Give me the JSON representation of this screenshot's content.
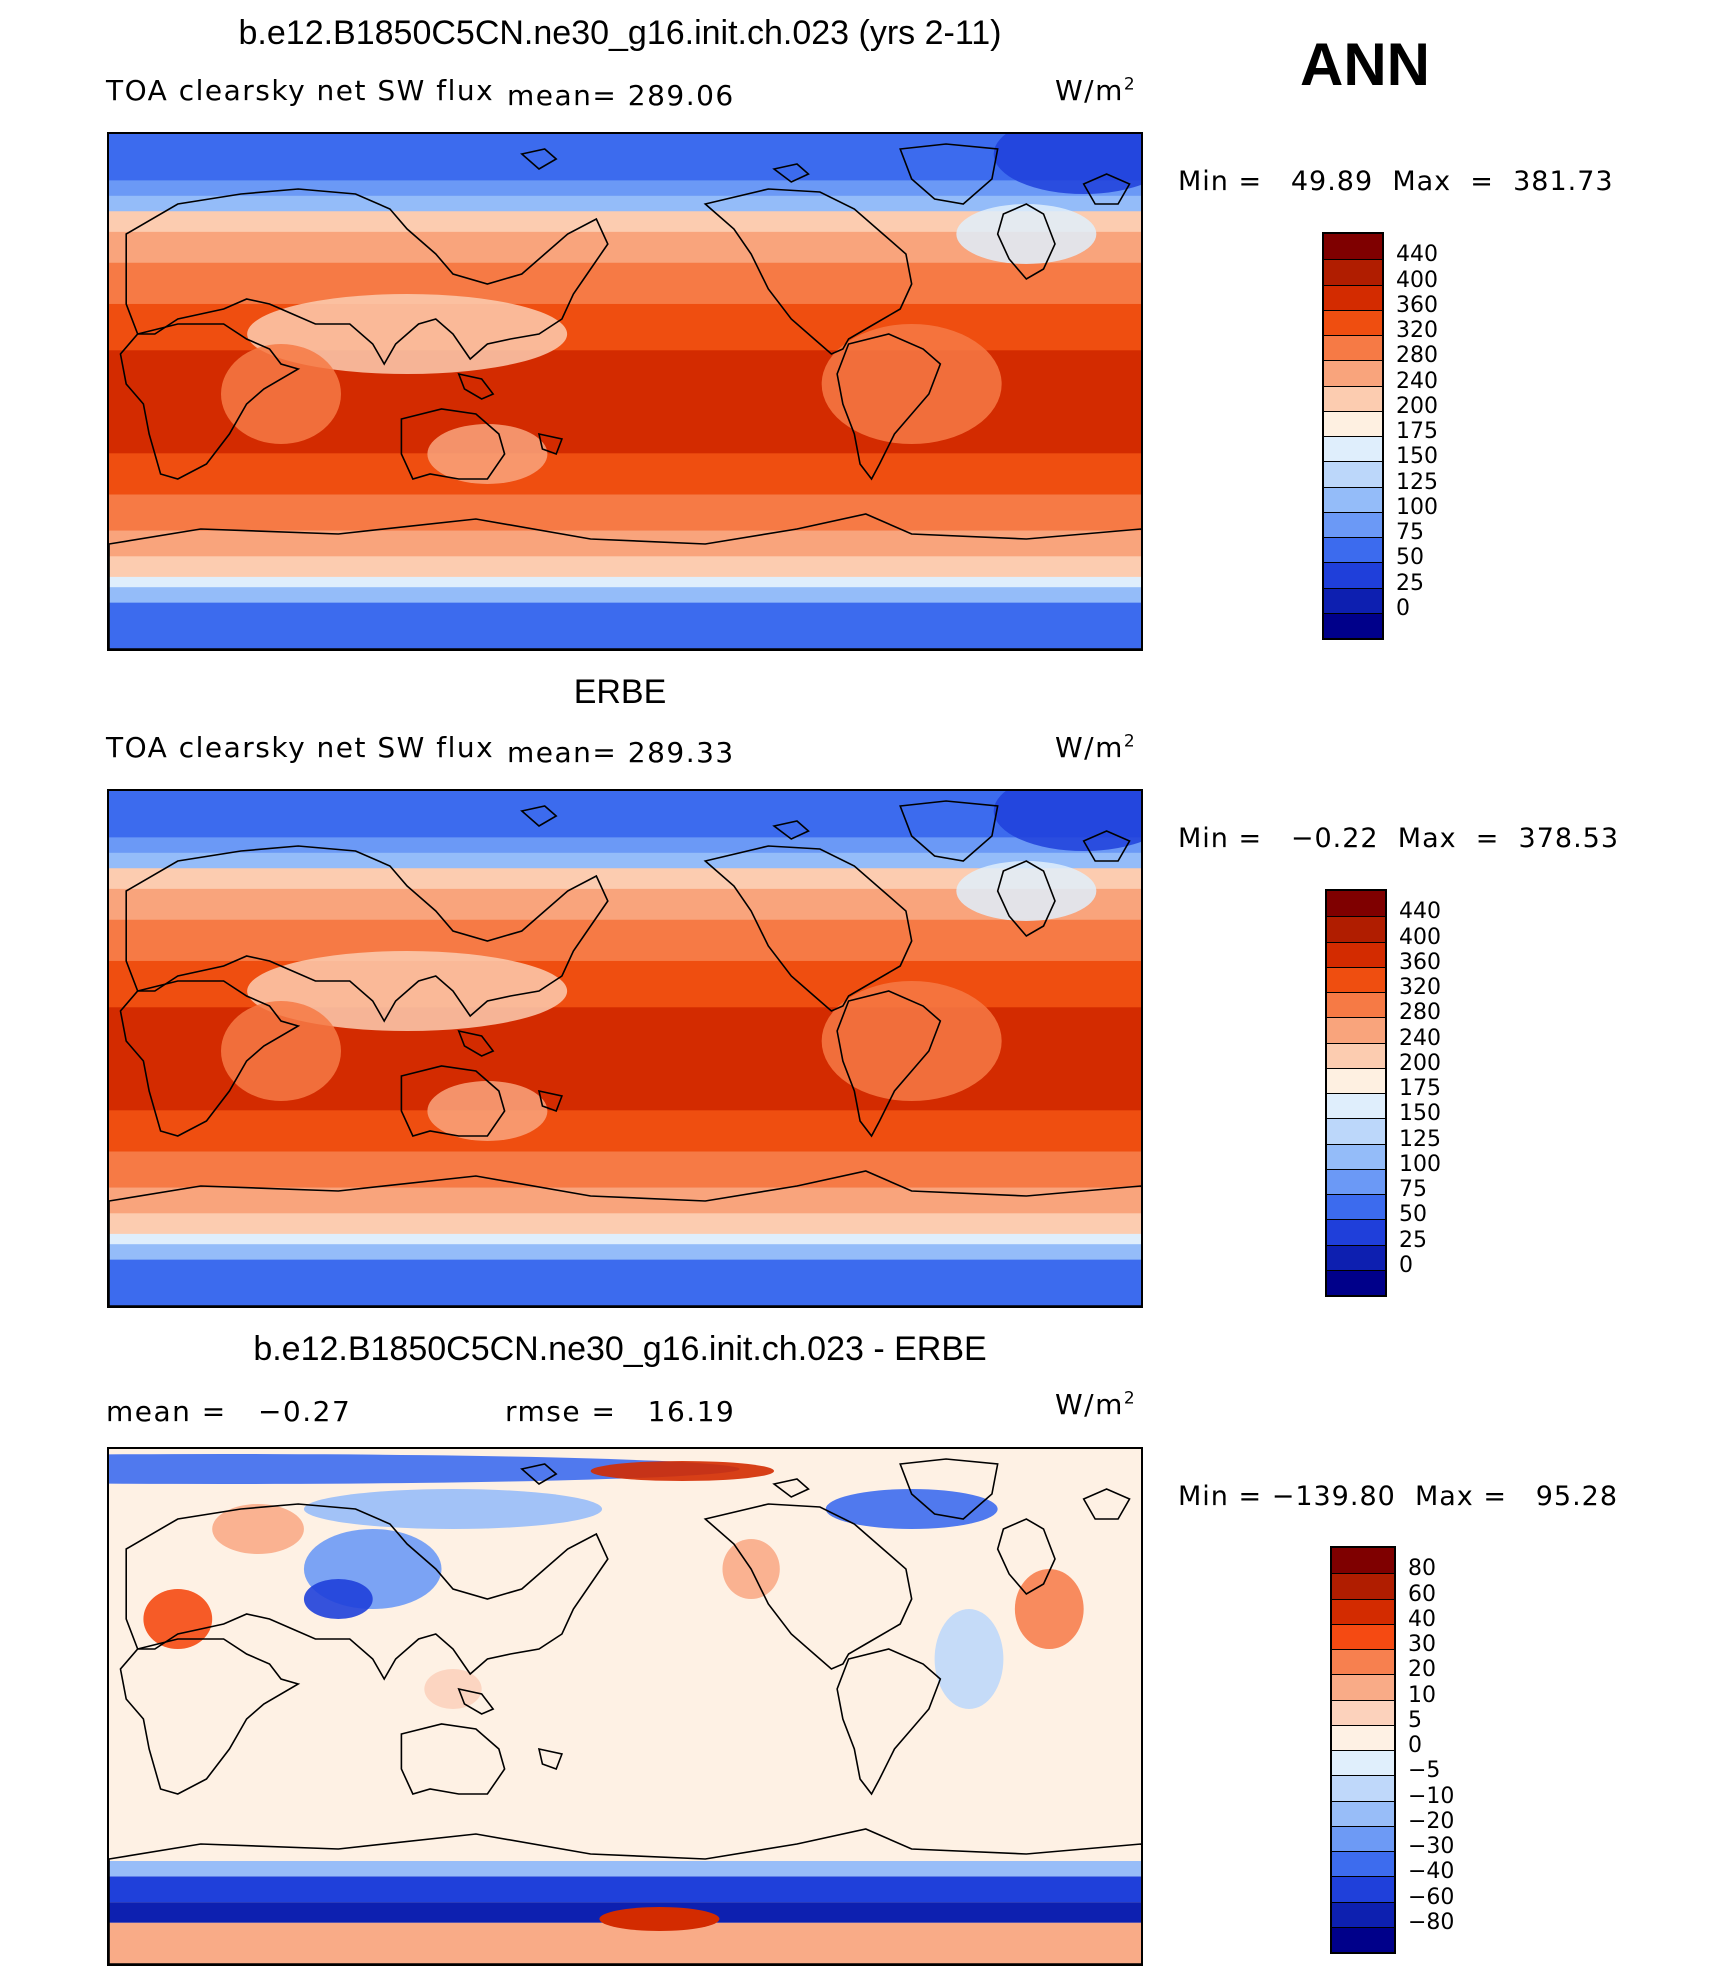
{
  "season": "ANN",
  "panels": [
    {
      "id": "model",
      "title": "b.e12.B1850C5CN.ne30_g16.init.ch.023 (yrs 2-11)",
      "variable_label": "TOA clearsky net SW flux",
      "mean_text": "mean= 289.06",
      "units_base": "W/m",
      "units_exp": "2",
      "minmax_text": "Min =   49.89  Max  =  381.73",
      "colorbar_levels": [
        "440",
        "400",
        "360",
        "320",
        "280",
        "240",
        "200",
        "175",
        "150",
        "125",
        "100",
        "75",
        "50",
        "25",
        "0"
      ],
      "colorbar_colors": [
        "#7f0000",
        "#b01d00",
        "#d32b00",
        "#ef4e10",
        "#f67a45",
        "#f9a47c",
        "#fcccb0",
        "#fef0e1",
        "#dfeefc",
        "#bcd7fa",
        "#94bcf9",
        "#6b99f6",
        "#3c6bee",
        "#1f3fda",
        "#0d1fb0",
        "#00008a"
      ]
    },
    {
      "id": "obs",
      "title": "ERBE",
      "variable_label": "TOA clearsky net SW flux",
      "mean_text": "mean= 289.33",
      "units_base": "W/m",
      "units_exp": "2",
      "minmax_text": "Min =   −0.22  Max  =  378.53",
      "colorbar_levels": [
        "440",
        "400",
        "360",
        "320",
        "280",
        "240",
        "200",
        "175",
        "150",
        "125",
        "100",
        "75",
        "50",
        "25",
        "0"
      ],
      "colorbar_colors": [
        "#7f0000",
        "#b01d00",
        "#d32b00",
        "#ef4e10",
        "#f67a45",
        "#f9a47c",
        "#fcccb0",
        "#fef0e1",
        "#dfeefc",
        "#bcd7fa",
        "#94bcf9",
        "#6b99f6",
        "#3c6bee",
        "#1f3fda",
        "#0d1fb0",
        "#00008a"
      ]
    },
    {
      "id": "diff",
      "title": "b.e12.B1850C5CN.ne30_g16.init.ch.023 - ERBE",
      "mean_text": "mean =   −0.27",
      "rmse_text": "rmse =   16.19",
      "units_base": "W/m",
      "units_exp": "2",
      "minmax_text": "Min = −139.80  Max =   95.28",
      "colorbar_levels": [
        "80",
        "60",
        "40",
        "30",
        "20",
        "10",
        "5",
        "0",
        "−5",
        "−10",
        "−20",
        "−30",
        "−40",
        "−60",
        "−80"
      ],
      "colorbar_colors": [
        "#7f0000",
        "#b01d00",
        "#d32b00",
        "#f54a12",
        "#f7804f",
        "#f9ab87",
        "#fcd2bc",
        "#fef1e4",
        "#e0effc",
        "#bfd8fa",
        "#98bdf8",
        "#6d9af5",
        "#3d6cee",
        "#1f40da",
        "#0d20b0",
        "#00008a"
      ]
    }
  ]
}
